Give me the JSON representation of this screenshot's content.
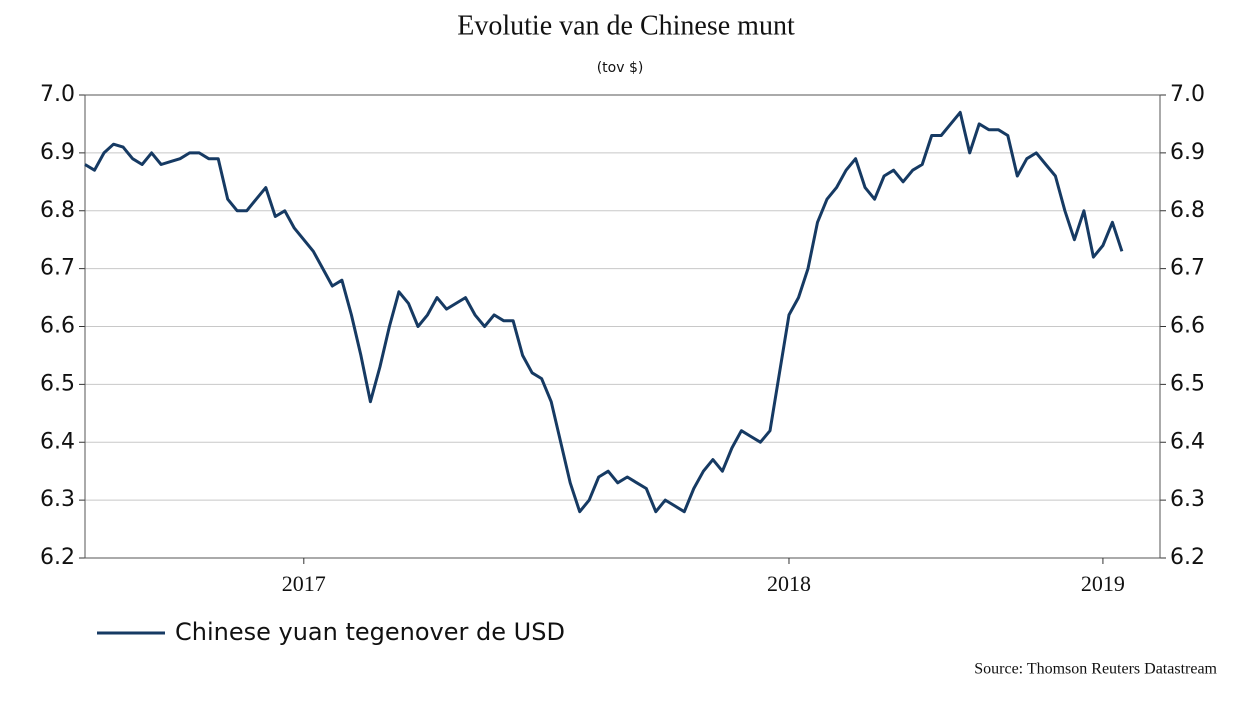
{
  "chart_data": {
    "type": "line",
    "title": "Evolutie van de Chinese munt",
    "subtitle": "(tov $)",
    "source": "Source: Thomson Reuters Datastream",
    "categories": [
      null,
      null,
      null,
      null,
      null,
      null,
      null,
      null,
      null,
      null,
      null,
      null,
      null,
      null,
      null,
      null,
      null,
      null,
      null,
      null,
      null,
      null,
      null,
      "2017",
      null,
      null,
      null,
      null,
      null,
      null,
      null,
      null,
      null,
      null,
      null,
      null,
      null,
      null,
      null,
      null,
      null,
      null,
      null,
      null,
      null,
      null,
      null,
      null,
      null,
      null,
      null,
      null,
      null,
      null,
      null,
      null,
      null,
      null,
      null,
      null,
      null,
      null,
      null,
      null,
      null,
      null,
      null,
      null,
      null,
      null,
      null,
      null,
      null,
      null,
      "2018",
      null,
      null,
      null,
      null,
      null,
      null,
      null,
      null,
      null,
      null,
      null,
      null,
      null,
      null,
      null,
      null,
      null,
      null,
      null,
      null,
      null,
      null,
      null,
      null,
      null,
      null,
      null,
      null,
      null,
      null,
      null,
      null,
      "2019",
      null,
      null
    ],
    "series": [
      {
        "name": "Chinese yuan tegenover de USD",
        "color": "#163a63",
        "values": [
          6.88,
          6.87,
          6.9,
          6.915,
          6.91,
          6.89,
          6.88,
          6.9,
          6.88,
          6.885,
          6.89,
          6.9,
          6.9,
          6.89,
          6.89,
          6.82,
          6.8,
          6.8,
          6.82,
          6.84,
          6.79,
          6.8,
          6.77,
          6.75,
          6.73,
          6.7,
          6.67,
          6.68,
          6.62,
          6.55,
          6.47,
          6.53,
          6.6,
          6.66,
          6.64,
          6.6,
          6.62,
          6.65,
          6.63,
          6.64,
          6.65,
          6.62,
          6.6,
          6.62,
          6.61,
          6.61,
          6.55,
          6.52,
          6.51,
          6.47,
          6.4,
          6.33,
          6.28,
          6.3,
          6.34,
          6.35,
          6.33,
          6.34,
          6.33,
          6.32,
          6.28,
          6.3,
          6.29,
          6.28,
          6.32,
          6.35,
          6.37,
          6.35,
          6.39,
          6.42,
          6.41,
          6.4,
          6.42,
          6.52,
          6.62,
          6.65,
          6.7,
          6.78,
          6.82,
          6.84,
          6.87,
          6.89,
          6.84,
          6.82,
          6.86,
          6.87,
          6.85,
          6.87,
          6.88,
          6.93,
          6.93,
          6.95,
          6.97,
          6.9,
          6.95,
          6.94,
          6.94,
          6.93,
          6.86,
          6.89,
          6.9,
          6.88,
          6.86,
          6.8,
          6.75,
          6.8,
          6.72,
          6.74,
          6.78,
          6.73
        ]
      }
    ],
    "ylim": [
      6.2,
      7.0
    ],
    "yticks": [
      6.2,
      6.3,
      6.4,
      6.5,
      6.6,
      6.7,
      6.8,
      6.9,
      {
        "value": 7.0,
        "label": "7.0"
      }
    ],
    "y2lim": [
      6.2,
      7.0
    ],
    "y2ticks": [
      6.2,
      6.3,
      6.4,
      6.5,
      6.6,
      6.7,
      6.8,
      6.9,
      {
        "value": 7.0,
        "label": "7.0"
      }
    ],
    "grid": true
  }
}
